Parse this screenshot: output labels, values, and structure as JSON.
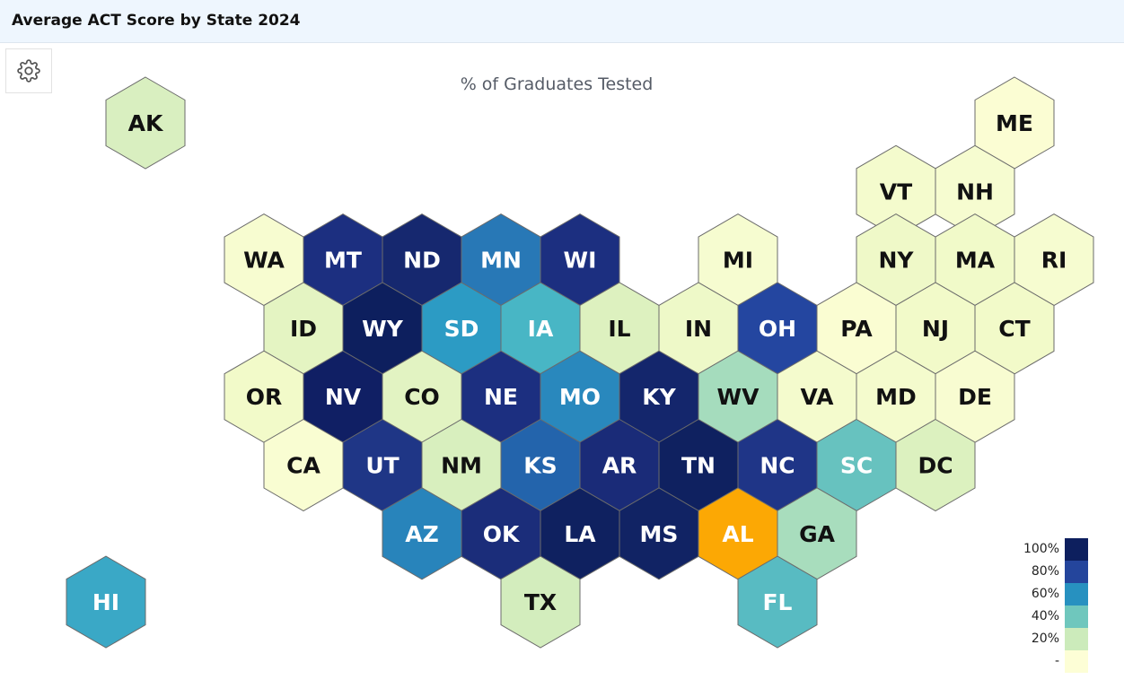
{
  "header": {
    "title": "Average ACT Score by State 2024"
  },
  "toolbar": {
    "settings_icon": "gear-icon"
  },
  "map": {
    "title": "% of Graduates Tested",
    "color_scale": [
      {
        "label": "100%",
        "color": "#0d1f5e"
      },
      {
        "label": "80%",
        "color": "#24459c"
      },
      {
        "label": "60%",
        "color": "#2791c0"
      },
      {
        "label": "40%",
        "color": "#6fc7bd"
      },
      {
        "label": "20%",
        "color": "#ccebbb"
      },
      {
        "label": "-",
        "color": "#fdfed6"
      }
    ],
    "states": [
      {
        "abbr": "AK",
        "row": 0,
        "col": 0.5,
        "fill": "#d9efc0",
        "text": "#111111"
      },
      {
        "abbr": "ME",
        "row": 0,
        "col": 11.5,
        "fill": "#fbfdd3",
        "text": "#111111"
      },
      {
        "abbr": "VT",
        "row": 1,
        "col": 10,
        "fill": "#f4fbcd",
        "text": "#111111"
      },
      {
        "abbr": "NH",
        "row": 1,
        "col": 11,
        "fill": "#f6fcd0",
        "text": "#111111"
      },
      {
        "abbr": "WA",
        "row": 2,
        "col": 2,
        "fill": "#f7fcd0",
        "text": "#111111"
      },
      {
        "abbr": "MT",
        "row": 2,
        "col": 3,
        "fill": "#1c2f80",
        "text": "#ffffff"
      },
      {
        "abbr": "ND",
        "row": 2,
        "col": 4,
        "fill": "#16286f",
        "text": "#ffffff"
      },
      {
        "abbr": "MN",
        "row": 2,
        "col": 5,
        "fill": "#2878b6",
        "text": "#ffffff"
      },
      {
        "abbr": "WI",
        "row": 2,
        "col": 6,
        "fill": "#1c2f80",
        "text": "#ffffff"
      },
      {
        "abbr": "MI",
        "row": 2,
        "col": 8,
        "fill": "#f6fcd0",
        "text": "#111111"
      },
      {
        "abbr": "NY",
        "row": 2,
        "col": 10,
        "fill": "#eff9c8",
        "text": "#111111"
      },
      {
        "abbr": "MA",
        "row": 2,
        "col": 11,
        "fill": "#f1fac9",
        "text": "#111111"
      },
      {
        "abbr": "RI",
        "row": 2,
        "col": 12,
        "fill": "#f6fcd0",
        "text": "#111111"
      },
      {
        "abbr": "ID",
        "row": 3,
        "col": 2.5,
        "fill": "#e4f4c2",
        "text": "#111111"
      },
      {
        "abbr": "WY",
        "row": 3,
        "col": 3.5,
        "fill": "#0d1f5e",
        "text": "#ffffff"
      },
      {
        "abbr": "SD",
        "row": 3,
        "col": 4.5,
        "fill": "#2c9bc4",
        "text": "#ffffff"
      },
      {
        "abbr": "IA",
        "row": 3,
        "col": 5.5,
        "fill": "#48b6c5",
        "text": "#ffffff"
      },
      {
        "abbr": "IL",
        "row": 3,
        "col": 6.5,
        "fill": "#ddf1bf",
        "text": "#111111"
      },
      {
        "abbr": "IN",
        "row": 3,
        "col": 7.5,
        "fill": "#eef9c8",
        "text": "#111111"
      },
      {
        "abbr": "OH",
        "row": 3,
        "col": 8.5,
        "fill": "#2446a0",
        "text": "#ffffff"
      },
      {
        "abbr": "PA",
        "row": 3,
        "col": 9.5,
        "fill": "#fafdd2",
        "text": "#111111"
      },
      {
        "abbr": "NJ",
        "row": 3,
        "col": 10.5,
        "fill": "#f2fac9",
        "text": "#111111"
      },
      {
        "abbr": "CT",
        "row": 3,
        "col": 11.5,
        "fill": "#f2fac9",
        "text": "#111111"
      },
      {
        "abbr": "OR",
        "row": 4,
        "col": 2,
        "fill": "#f2fac9",
        "text": "#111111"
      },
      {
        "abbr": "NV",
        "row": 4,
        "col": 3,
        "fill": "#101f64",
        "text": "#ffffff"
      },
      {
        "abbr": "CO",
        "row": 4,
        "col": 4,
        "fill": "#e2f3c2",
        "text": "#111111"
      },
      {
        "abbr": "NE",
        "row": 4,
        "col": 5,
        "fill": "#1c2f80",
        "text": "#ffffff"
      },
      {
        "abbr": "MO",
        "row": 4,
        "col": 6,
        "fill": "#2988bd",
        "text": "#ffffff"
      },
      {
        "abbr": "KY",
        "row": 4,
        "col": 7,
        "fill": "#14266c",
        "text": "#ffffff"
      },
      {
        "abbr": "WV",
        "row": 4,
        "col": 8,
        "fill": "#a5dcbd",
        "text": "#111111"
      },
      {
        "abbr": "VA",
        "row": 4,
        "col": 9,
        "fill": "#f4fbcd",
        "text": "#111111"
      },
      {
        "abbr": "MD",
        "row": 4,
        "col": 10,
        "fill": "#f4fbcd",
        "text": "#111111"
      },
      {
        "abbr": "DE",
        "row": 4,
        "col": 11,
        "fill": "#f8fcd1",
        "text": "#111111"
      },
      {
        "abbr": "CA",
        "row": 5,
        "col": 2.5,
        "fill": "#f9fdd2",
        "text": "#111111"
      },
      {
        "abbr": "UT",
        "row": 5,
        "col": 3.5,
        "fill": "#1f3686",
        "text": "#ffffff"
      },
      {
        "abbr": "NM",
        "row": 5,
        "col": 4.5,
        "fill": "#d8efbe",
        "text": "#111111"
      },
      {
        "abbr": "KS",
        "row": 5,
        "col": 5.5,
        "fill": "#2364ac",
        "text": "#ffffff"
      },
      {
        "abbr": "AR",
        "row": 5,
        "col": 6.5,
        "fill": "#1a2b78",
        "text": "#ffffff"
      },
      {
        "abbr": "TN",
        "row": 5,
        "col": 7.5,
        "fill": "#0f2160",
        "text": "#ffffff"
      },
      {
        "abbr": "NC",
        "row": 5,
        "col": 8.5,
        "fill": "#1f3587",
        "text": "#ffffff"
      },
      {
        "abbr": "SC",
        "row": 5,
        "col": 9.5,
        "fill": "#67c2bf",
        "text": "#ffffff"
      },
      {
        "abbr": "DC",
        "row": 5,
        "col": 10.5,
        "fill": "#dcf1bf",
        "text": "#111111"
      },
      {
        "abbr": "AZ",
        "row": 6,
        "col": 4,
        "fill": "#2884bb",
        "text": "#ffffff"
      },
      {
        "abbr": "OK",
        "row": 6,
        "col": 5,
        "fill": "#1b2d7a",
        "text": "#ffffff"
      },
      {
        "abbr": "LA",
        "row": 6,
        "col": 6,
        "fill": "#0f2160",
        "text": "#ffffff"
      },
      {
        "abbr": "MS",
        "row": 6,
        "col": 7,
        "fill": "#112364",
        "text": "#ffffff"
      },
      {
        "abbr": "AL",
        "row": 6,
        "col": 8,
        "fill": "#fca804",
        "text": "#ffffff"
      },
      {
        "abbr": "GA",
        "row": 6,
        "col": 9,
        "fill": "#a8ddbd",
        "text": "#111111"
      },
      {
        "abbr": "TX",
        "row": 7,
        "col": 5.5,
        "fill": "#d3edbd",
        "text": "#111111"
      },
      {
        "abbr": "FL",
        "row": 7,
        "col": 8.5,
        "fill": "#58bbc2",
        "text": "#ffffff"
      },
      {
        "abbr": "HI",
        "row": 7,
        "col": 0,
        "fill": "#3aa8c6",
        "text": "#ffffff"
      }
    ]
  }
}
